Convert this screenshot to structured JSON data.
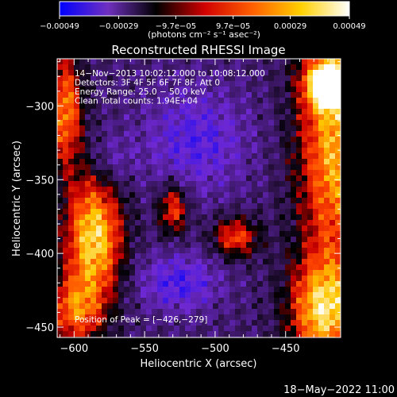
{
  "chart_data": {
    "type": "heatmap",
    "title": "Reconstructed RHESSI Image",
    "xlabel": "Heliocentric X (arcsec)",
    "ylabel": "Heliocentric Y (arcsec)",
    "xlim": [
      -612,
      -411
    ],
    "ylim": [
      -457,
      -268
    ],
    "x_ticks": [
      -600,
      -550,
      -500,
      -450
    ],
    "y_ticks": [
      -450,
      -400,
      -350,
      -300
    ],
    "x_tick_labels": [
      "−600",
      "−550",
      "−500",
      "−450"
    ],
    "y_tick_labels": [
      "−450",
      "−400",
      "−350",
      "−300"
    ],
    "colorbar": {
      "range": [
        -0.00049,
        0.00049
      ],
      "tick_values": [
        -0.00049,
        -0.00029,
        -9.7e-05,
        9.7e-05,
        0.00029,
        0.00049
      ],
      "tick_labels": [
        "−0.00049",
        "−0.00029",
        "−9.7e−05",
        "9.7e−05",
        "0.00029",
        "0.00049"
      ],
      "unit_label": "(photons cm⁻² s⁻¹ asec⁻²)",
      "stops": [
        "#0000ff",
        "#7030c0",
        "#000000",
        "#d00000",
        "#ff6000",
        "#ffd000",
        "#ffffff"
      ]
    },
    "info_lines": [
      "14−Nov−2013 10:02:12.000 to 10:08:12.000",
      "Detectors: 3F 4F 5F 6F 7F 8F, Att 0",
      "Energy Range: 25.0 − 50.0 keV",
      "Clean     Total counts: 1.94E+04"
    ],
    "peak_label": "Position of Peak = [−426,−279]",
    "peak": [
      -426,
      -279
    ],
    "timestamp": "18−May−2022 11:00",
    "grid": false
  }
}
